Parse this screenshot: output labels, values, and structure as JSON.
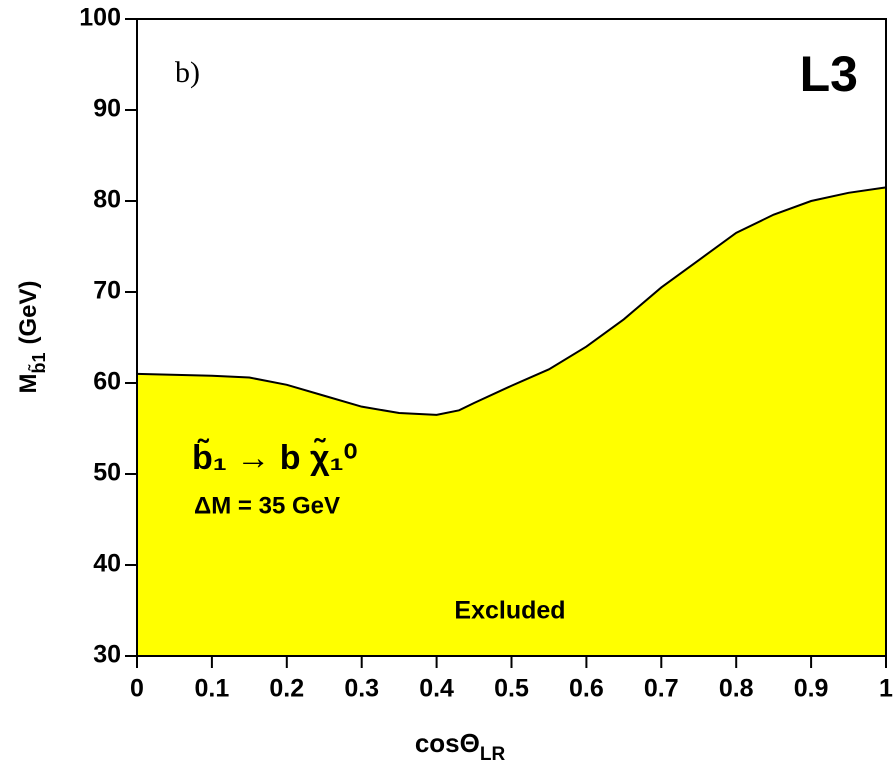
{
  "chart_data": {
    "type": "area",
    "x": [
      0,
      0.1,
      0.15,
      0.2,
      0.25,
      0.3,
      0.35,
      0.4,
      0.43,
      0.45,
      0.5,
      0.55,
      0.6,
      0.65,
      0.7,
      0.75,
      0.8,
      0.85,
      0.9,
      0.95,
      1.0
    ],
    "series": [
      {
        "color": "#ffff00",
        "line_color": "#000000",
        "values": [
          61.0,
          60.8,
          60.6,
          59.8,
          58.6,
          57.4,
          56.7,
          56.5,
          57.0,
          57.8,
          59.7,
          61.5,
          64.0,
          67.0,
          70.5,
          73.5,
          76.5,
          78.5,
          80.0,
          80.9,
          81.5
        ]
      }
    ],
    "xlim": [
      0,
      1
    ],
    "ylim": [
      30,
      100
    ],
    "xticks": [
      0,
      0.1,
      0.2,
      0.3,
      0.4,
      0.5,
      0.6,
      0.7,
      0.8,
      0.9,
      1
    ],
    "yticks": [
      30,
      40,
      50,
      60,
      70,
      80,
      90,
      100
    ],
    "x_label": {
      "text": "cosΘ",
      "subscript": "LR"
    },
    "y_label": {
      "text": "M",
      "subscript": "b̃1",
      "suffix": "(GeV)"
    },
    "annotations": {
      "panel": "b)",
      "experiment": "L3",
      "decay": "b̃₁ → b χ̃₁⁰",
      "delta_m": "ΔM = 35 GeV",
      "region": "Excluded"
    }
  }
}
